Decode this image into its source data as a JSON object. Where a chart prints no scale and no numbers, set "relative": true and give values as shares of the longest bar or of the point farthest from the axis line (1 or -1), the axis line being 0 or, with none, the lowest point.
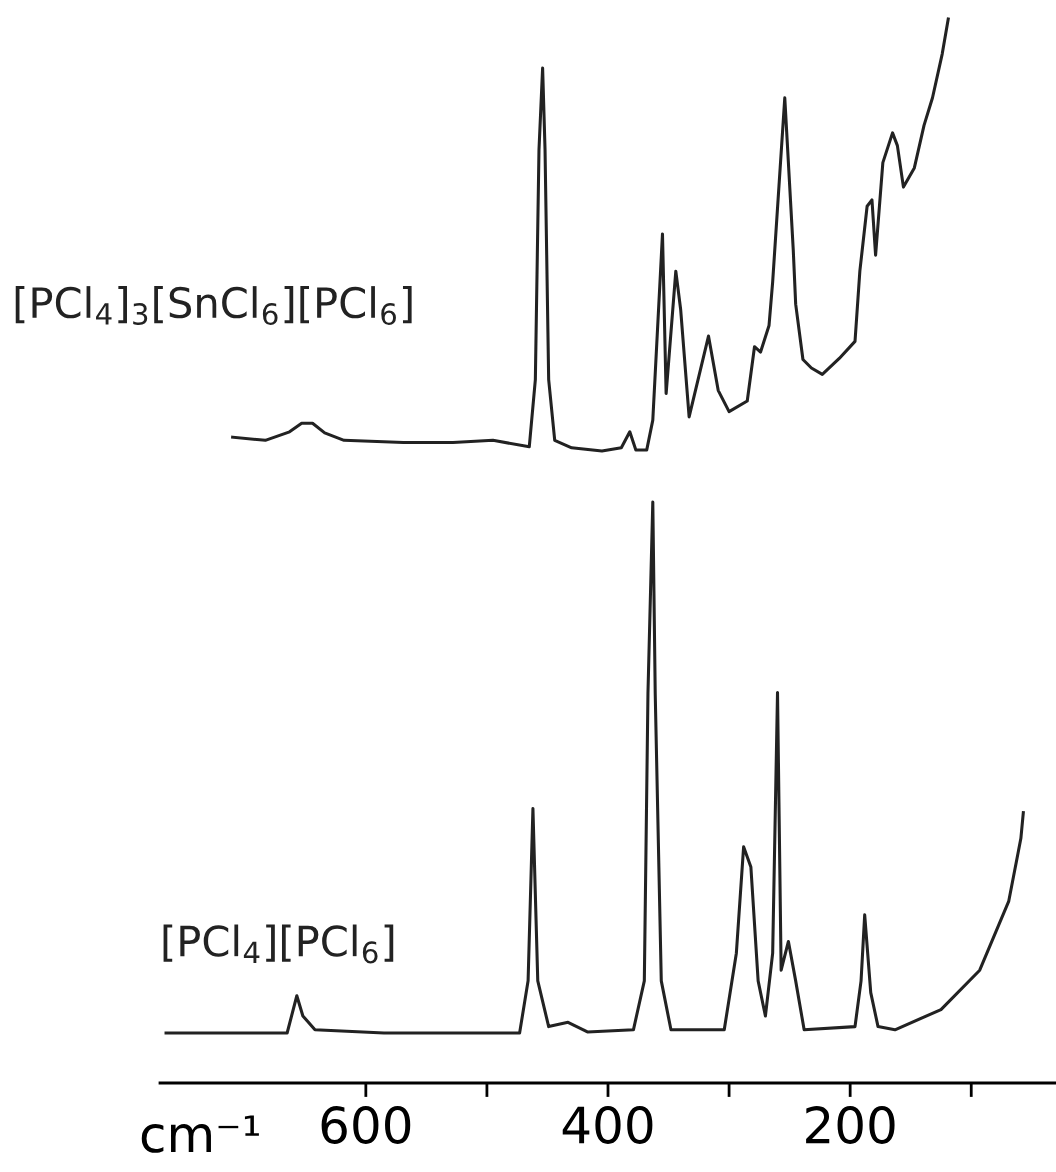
{
  "chart_data": {
    "type": "line",
    "relative": true,
    "xlabel": "cm⁻¹",
    "xlim": [
      770,
      30
    ],
    "xticks": [
      600,
      {
        "value": 500,
        "label": null
      },
      400,
      {
        "value": 300,
        "label": null
      },
      200,
      {
        "value": 100,
        "label": null
      }
    ],
    "grid": false,
    "legend": false,
    "marker": "none",
    "line_style": "solid",
    "series": [
      {
        "name": "[PCl$_{4}$]$_{3}$[SnCl$_{6}$][PCl$_{6}$]",
        "color": "#222222",
        "x": [
          710,
          683,
          663,
          653,
          644,
          634,
          618,
          569,
          528,
          495,
          465,
          460,
          457,
          454,
          452,
          449,
          444,
          430,
          405,
          389,
          382,
          377,
          368,
          363,
          355,
          352,
          344,
          340,
          333,
          317,
          309,
          300,
          285,
          279,
          274,
          267,
          264,
          254,
          247,
          245,
          239,
          232,
          223,
          209,
          196,
          192,
          186,
          182,
          179,
          173,
          165,
          161,
          156,
          147,
          139,
          132,
          124,
          119
        ],
        "values": [
          0.607,
          0.604,
          0.612,
          0.62,
          0.62,
          0.611,
          0.604,
          0.602,
          0.602,
          0.604,
          0.598,
          0.661,
          0.877,
          0.954,
          0.877,
          0.661,
          0.604,
          0.597,
          0.594,
          0.597,
          0.612,
          0.595,
          0.595,
          0.623,
          0.798,
          0.648,
          0.763,
          0.727,
          0.626,
          0.702,
          0.651,
          0.631,
          0.641,
          0.692,
          0.687,
          0.712,
          0.753,
          0.926,
          0.783,
          0.732,
          0.68,
          0.672,
          0.666,
          0.681,
          0.697,
          0.763,
          0.824,
          0.83,
          0.778,
          0.865,
          0.893,
          0.881,
          0.842,
          0.86,
          0.9,
          0.926,
          0.967,
          1.0
        ]
      },
      {
        "name": "[PCl$_{4}$][PCl$_{6}$]",
        "color": "#222222",
        "x": [
          765,
          665,
          657,
          652,
          642,
          585,
          473,
          466,
          462,
          458,
          449,
          433,
          417,
          379,
          370,
          367,
          363,
          361,
          356,
          348,
          304,
          294,
          288,
          282,
          276,
          270,
          264,
          260,
          257,
          251,
          245,
          238,
          196,
          191,
          188,
          183,
          177,
          163,
          125,
          93,
          69,
          59,
          57
        ],
        "values": [
          0.047,
          0.047,
          0.082,
          0.063,
          0.05,
          0.047,
          0.047,
          0.096,
          0.258,
          0.096,
          0.053,
          0.057,
          0.048,
          0.05,
          0.096,
          0.366,
          0.546,
          0.366,
          0.096,
          0.05,
          0.05,
          0.122,
          0.222,
          0.203,
          0.096,
          0.063,
          0.122,
          0.367,
          0.106,
          0.133,
          0.096,
          0.05,
          0.053,
          0.096,
          0.158,
          0.085,
          0.053,
          0.05,
          0.069,
          0.106,
          0.171,
          0.23,
          0.254
        ]
      }
    ]
  }
}
